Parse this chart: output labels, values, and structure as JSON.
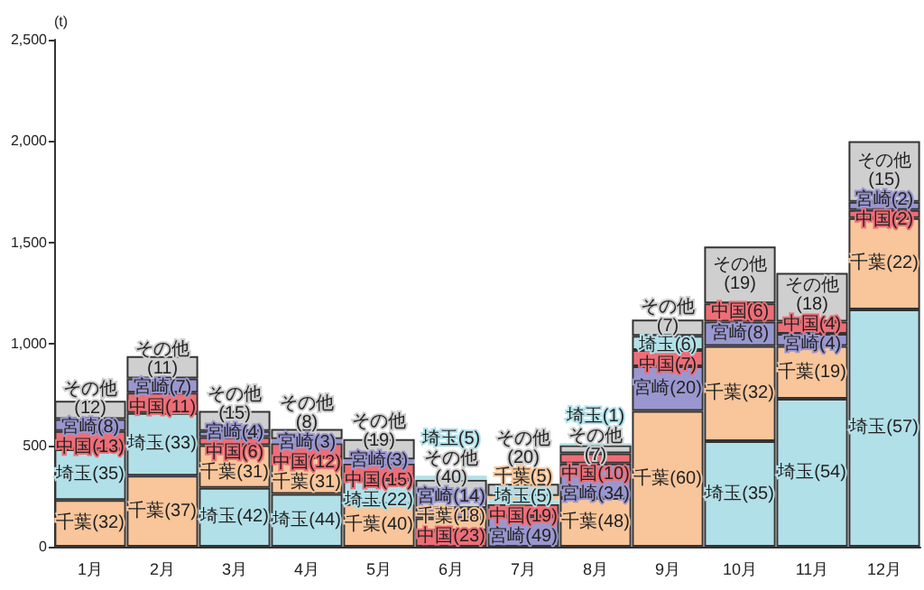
{
  "chart_data": {
    "type": "bar",
    "stacked": true,
    "ylabel": "(t)",
    "ylim": [
      0,
      2500
    ],
    "yticks": [
      {
        "value": 0,
        "label": "0"
      },
      {
        "value": 500,
        "label": "500"
      },
      {
        "value": 1000,
        "label": "1,000"
      },
      {
        "value": 1500,
        "label": "1,500"
      },
      {
        "value": 2000,
        "label": "2,000"
      },
      {
        "value": 2500,
        "label": "2,500"
      }
    ],
    "grid": false,
    "categories": [
      "1月",
      "2月",
      "3月",
      "4月",
      "5月",
      "6月",
      "7月",
      "8月",
      "9月",
      "10月",
      "11月",
      "12月"
    ],
    "series": [
      {
        "values": [
          230,
          350,
          290,
          260,
          210,
          80,
          150,
          240,
          670,
          520,
          730,
          1170
        ],
        "colors": [
          "#f9c59a",
          "#f9c59a",
          "#b2e0e8",
          "#b2e0e8",
          "#f9c59a",
          "#ee6e77",
          "#9a97d0",
          "#f9c59a",
          "#f9c59a",
          "#b2e0e8",
          "#b2e0e8",
          "#b2e0e8"
        ],
        "value_labels": [
          "千葉(32)",
          "千葉(37)",
          "埼玉(42)",
          "埼玉(44)",
          "千葉(40)",
          "中国(23)",
          "宮崎(49)",
          "千葉(48)",
          "千葉(60)",
          "埼玉(35)",
          "埼玉(54)",
          "埼玉(57)"
        ]
      },
      {
        "values": [
          250,
          310,
          210,
          180,
          120,
          60,
          60,
          170,
          220,
          470,
          260,
          450
        ],
        "colors": [
          "#b2e0e8",
          "#b2e0e8",
          "#f9c59a",
          "#f9c59a",
          "#b2e0e8",
          "#f9c59a",
          "#ee6e77",
          "#9a97d0",
          "#9a97d0",
          "#f9c59a",
          "#f9c59a",
          "#f9c59a"
        ],
        "value_labels": [
          "埼玉(35)",
          "埼玉(33)",
          "千葉(31)",
          "千葉(31)",
          "埼玉(22)",
          "千葉(18)",
          "中国(19)",
          "宮崎(34)",
          "宮崎(20)",
          "千葉(32)",
          "千葉(19)",
          "千葉(22)"
        ]
      },
      {
        "values": [
          90,
          100,
          40,
          70,
          80,
          50,
          20,
          50,
          80,
          120,
          60,
          40
        ],
        "colors": [
          "#ee6e77",
          "#ee6e77",
          "#ee6e77",
          "#ee6e77",
          "#ee6e77",
          "#9a97d0",
          "#b2e0e8",
          "#ee6e77",
          "#ee6e77",
          "#9a97d0",
          "#9a97d0",
          "#ee6e77"
        ],
        "value_labels": [
          "中国(13)",
          "中国(11)",
          "中国(6)",
          "中国(12)",
          "中国(15)",
          "宮崎(14)",
          "埼玉(5)",
          "中国(10)",
          "中国(7)",
          "宮崎(8)",
          "宮崎(4)",
          "中国(2)"
        ]
      },
      {
        "values": [
          60,
          70,
          30,
          20,
          20,
          140,
          20,
          40,
          70,
          90,
          60,
          40
        ],
        "colors": [
          "#9a97d0",
          "#9a97d0",
          "#9a97d0",
          "#9a97d0",
          "#9a97d0",
          "#cfcfcf",
          "#f9c59a",
          "#cfcfcf",
          "#b2e0e8",
          "#ee6e77",
          "#ee6e77",
          "#9a97d0"
        ],
        "value_labels": [
          "宮崎(8)",
          "宮崎(7)",
          "宮崎(4)",
          "宮崎(3)",
          "宮崎(3)",
          "その他(40)",
          "千葉(5)",
          "その他(7)",
          "埼玉(6)",
          "中国(6)",
          "中国(4)",
          "宮崎(2)"
        ]
      },
      {
        "values": [
          90,
          110,
          100,
          50,
          100,
          20,
          60,
          10,
          80,
          280,
          240,
          300
        ],
        "colors": [
          "#cfcfcf",
          "#cfcfcf",
          "#cfcfcf",
          "#cfcfcf",
          "#cfcfcf",
          "#b2e0e8",
          "#cfcfcf",
          "#b2e0e8",
          "#cfcfcf",
          "#cfcfcf",
          "#cfcfcf",
          "#cfcfcf"
        ],
        "value_labels": [
          "その他(12)",
          "その他(11)",
          "その他(15)",
          "その他(8)",
          "その他(19)",
          "埼玉(5)",
          "その他(20)",
          "埼玉(1)",
          "その他(7)",
          "その他(19)",
          "その他(18)",
          "その他(15)"
        ]
      }
    ]
  }
}
